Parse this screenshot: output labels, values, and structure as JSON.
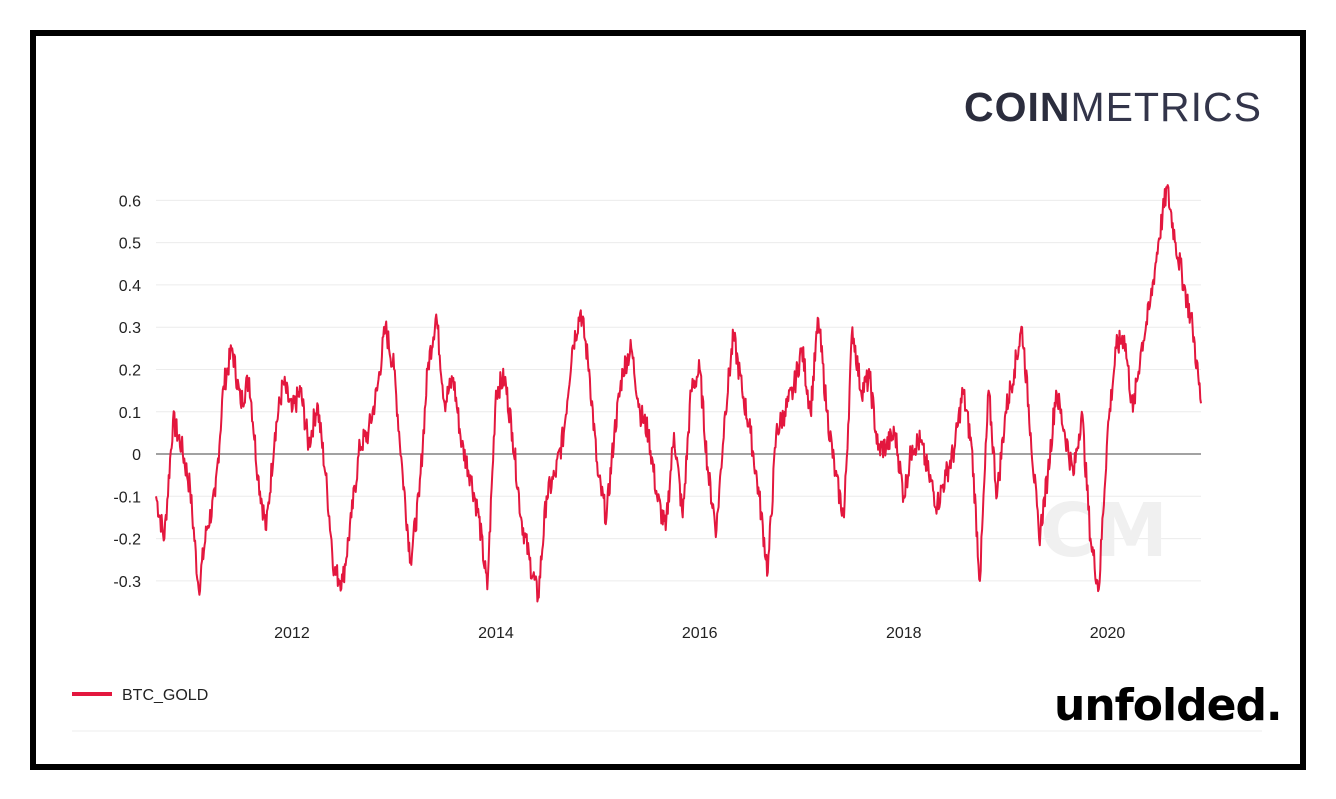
{
  "brand": {
    "name_bold": "COIN",
    "name_light": "METRICS"
  },
  "publisher": {
    "label": "unfolded."
  },
  "colors": {
    "series": "#e3173e",
    "zero_line": "#444444",
    "grid": "#ececec",
    "watermark": "#eeeeee"
  },
  "chart_data": {
    "type": "line",
    "title": "",
    "xlabel": "",
    "ylabel": "",
    "x_axis": {
      "type": "date",
      "range": [
        "2010-09-01",
        "2020-12-01"
      ],
      "ticks": [
        "2012",
        "2014",
        "2016",
        "2018",
        "2020"
      ]
    },
    "y_axis": {
      "range": [
        -0.35,
        0.66
      ],
      "ticks": [
        "0.6",
        "0.5",
        "0.4",
        "0.3",
        "0.2",
        "0.1",
        "0",
        "-0.1",
        "-0.2",
        "-0.3"
      ]
    },
    "grid": true,
    "legend": {
      "placement": "bottom-left"
    },
    "series": [
      {
        "name": "BTC_GOLD",
        "color": "#e3173e",
        "points": [
          [
            "2010-09-01",
            -0.1
          ],
          [
            "2010-10-01",
            -0.2
          ],
          [
            "2010-11-01",
            0.08
          ],
          [
            "2010-12-01",
            0.02
          ],
          [
            "2011-01-01",
            -0.08
          ],
          [
            "2011-02-01",
            -0.32
          ],
          [
            "2011-03-01",
            -0.18
          ],
          [
            "2011-04-01",
            -0.1
          ],
          [
            "2011-05-01",
            0.16
          ],
          [
            "2011-06-01",
            0.25
          ],
          [
            "2011-07-01",
            0.12
          ],
          [
            "2011-08-01",
            0.18
          ],
          [
            "2011-09-01",
            -0.05
          ],
          [
            "2011-10-01",
            -0.18
          ],
          [
            "2011-11-01",
            0.05
          ],
          [
            "2011-12-01",
            0.17
          ],
          [
            "2012-01-01",
            0.1
          ],
          [
            "2012-02-01",
            0.15
          ],
          [
            "2012-03-01",
            0.02
          ],
          [
            "2012-04-01",
            0.12
          ],
          [
            "2012-05-01",
            -0.05
          ],
          [
            "2012-06-01",
            -0.28
          ],
          [
            "2012-07-01",
            -0.3
          ],
          [
            "2012-08-01",
            -0.15
          ],
          [
            "2012-09-01",
            0.02
          ],
          [
            "2012-10-01",
            0.05
          ],
          [
            "2012-11-01",
            0.15
          ],
          [
            "2012-12-01",
            0.3
          ],
          [
            "2013-01-01",
            0.2
          ],
          [
            "2013-02-01",
            -0.05
          ],
          [
            "2013-03-01",
            -0.25
          ],
          [
            "2013-04-01",
            -0.1
          ],
          [
            "2013-05-01",
            0.2
          ],
          [
            "2013-06-01",
            0.33
          ],
          [
            "2013-07-01",
            0.12
          ],
          [
            "2013-08-01",
            0.18
          ],
          [
            "2013-09-01",
            0.02
          ],
          [
            "2013-10-01",
            -0.05
          ],
          [
            "2013-11-01",
            -0.15
          ],
          [
            "2013-12-01",
            -0.32
          ],
          [
            "2014-01-01",
            0.15
          ],
          [
            "2014-02-01",
            0.18
          ],
          [
            "2014-03-01",
            0.05
          ],
          [
            "2014-04-01",
            -0.15
          ],
          [
            "2014-05-01",
            -0.25
          ],
          [
            "2014-06-01",
            -0.34
          ],
          [
            "2014-07-01",
            -0.1
          ],
          [
            "2014-08-01",
            -0.05
          ],
          [
            "2014-09-01",
            0.05
          ],
          [
            "2014-10-01",
            0.25
          ],
          [
            "2014-11-01",
            0.34
          ],
          [
            "2014-12-01",
            0.2
          ],
          [
            "2015-01-01",
            -0.05
          ],
          [
            "2015-02-01",
            -0.15
          ],
          [
            "2015-03-01",
            0.05
          ],
          [
            "2015-04-01",
            0.2
          ],
          [
            "2015-05-01",
            0.25
          ],
          [
            "2015-06-01",
            0.1
          ],
          [
            "2015-07-01",
            0.05
          ],
          [
            "2015-08-01",
            -0.1
          ],
          [
            "2015-09-01",
            -0.18
          ],
          [
            "2015-10-01",
            0.05
          ],
          [
            "2015-11-01",
            -0.15
          ],
          [
            "2015-12-01",
            0.15
          ],
          [
            "2016-01-01",
            0.2
          ],
          [
            "2016-02-01",
            -0.05
          ],
          [
            "2016-03-01",
            -0.18
          ],
          [
            "2016-04-01",
            0.1
          ],
          [
            "2016-05-01",
            0.28
          ],
          [
            "2016-06-01",
            0.15
          ],
          [
            "2016-07-01",
            0.05
          ],
          [
            "2016-08-01",
            -0.1
          ],
          [
            "2016-09-01",
            -0.28
          ],
          [
            "2016-10-01",
            0.05
          ],
          [
            "2016-11-01",
            0.1
          ],
          [
            "2016-12-01",
            0.15
          ],
          [
            "2017-01-01",
            0.25
          ],
          [
            "2017-02-01",
            0.1
          ],
          [
            "2017-03-01",
            0.32
          ],
          [
            "2017-04-01",
            0.1
          ],
          [
            "2017-05-01",
            -0.05
          ],
          [
            "2017-06-01",
            -0.15
          ],
          [
            "2017-07-01",
            0.3
          ],
          [
            "2017-08-01",
            0.15
          ],
          [
            "2017-09-01",
            0.18
          ],
          [
            "2017-10-01",
            0.01
          ],
          [
            "2017-11-01",
            0.02
          ],
          [
            "2017-12-01",
            0.05
          ],
          [
            "2018-01-01",
            -0.1
          ],
          [
            "2018-02-01",
            0.02
          ],
          [
            "2018-03-01",
            0.03
          ],
          [
            "2018-04-01",
            -0.05
          ],
          [
            "2018-05-01",
            -0.12
          ],
          [
            "2018-06-01",
            -0.05
          ],
          [
            "2018-07-01",
            0.01
          ],
          [
            "2018-08-01",
            0.15
          ],
          [
            "2018-09-01",
            0.02
          ],
          [
            "2018-10-01",
            -0.3
          ],
          [
            "2018-11-01",
            0.15
          ],
          [
            "2018-12-01",
            -0.1
          ],
          [
            "2019-01-01",
            0.1
          ],
          [
            "2019-02-01",
            0.2
          ],
          [
            "2019-03-01",
            0.3
          ],
          [
            "2019-04-01",
            0.05
          ],
          [
            "2019-05-01",
            -0.2
          ],
          [
            "2019-06-01",
            -0.05
          ],
          [
            "2019-07-01",
            0.15
          ],
          [
            "2019-08-01",
            0.05
          ],
          [
            "2019-09-01",
            -0.05
          ],
          [
            "2019-10-01",
            0.1
          ],
          [
            "2019-11-01",
            -0.2
          ],
          [
            "2019-12-01",
            -0.32
          ],
          [
            "2020-01-01",
            0.05
          ],
          [
            "2020-02-01",
            0.25
          ],
          [
            "2020-03-01",
            0.28
          ],
          [
            "2020-04-01",
            0.1
          ],
          [
            "2020-05-01",
            0.25
          ],
          [
            "2020-06-01",
            0.35
          ],
          [
            "2020-07-01",
            0.5
          ],
          [
            "2020-08-01",
            0.63
          ],
          [
            "2020-09-01",
            0.5
          ],
          [
            "2020-10-01",
            0.4
          ],
          [
            "2020-11-01",
            0.3
          ],
          [
            "2020-12-01",
            0.12
          ]
        ]
      }
    ]
  }
}
